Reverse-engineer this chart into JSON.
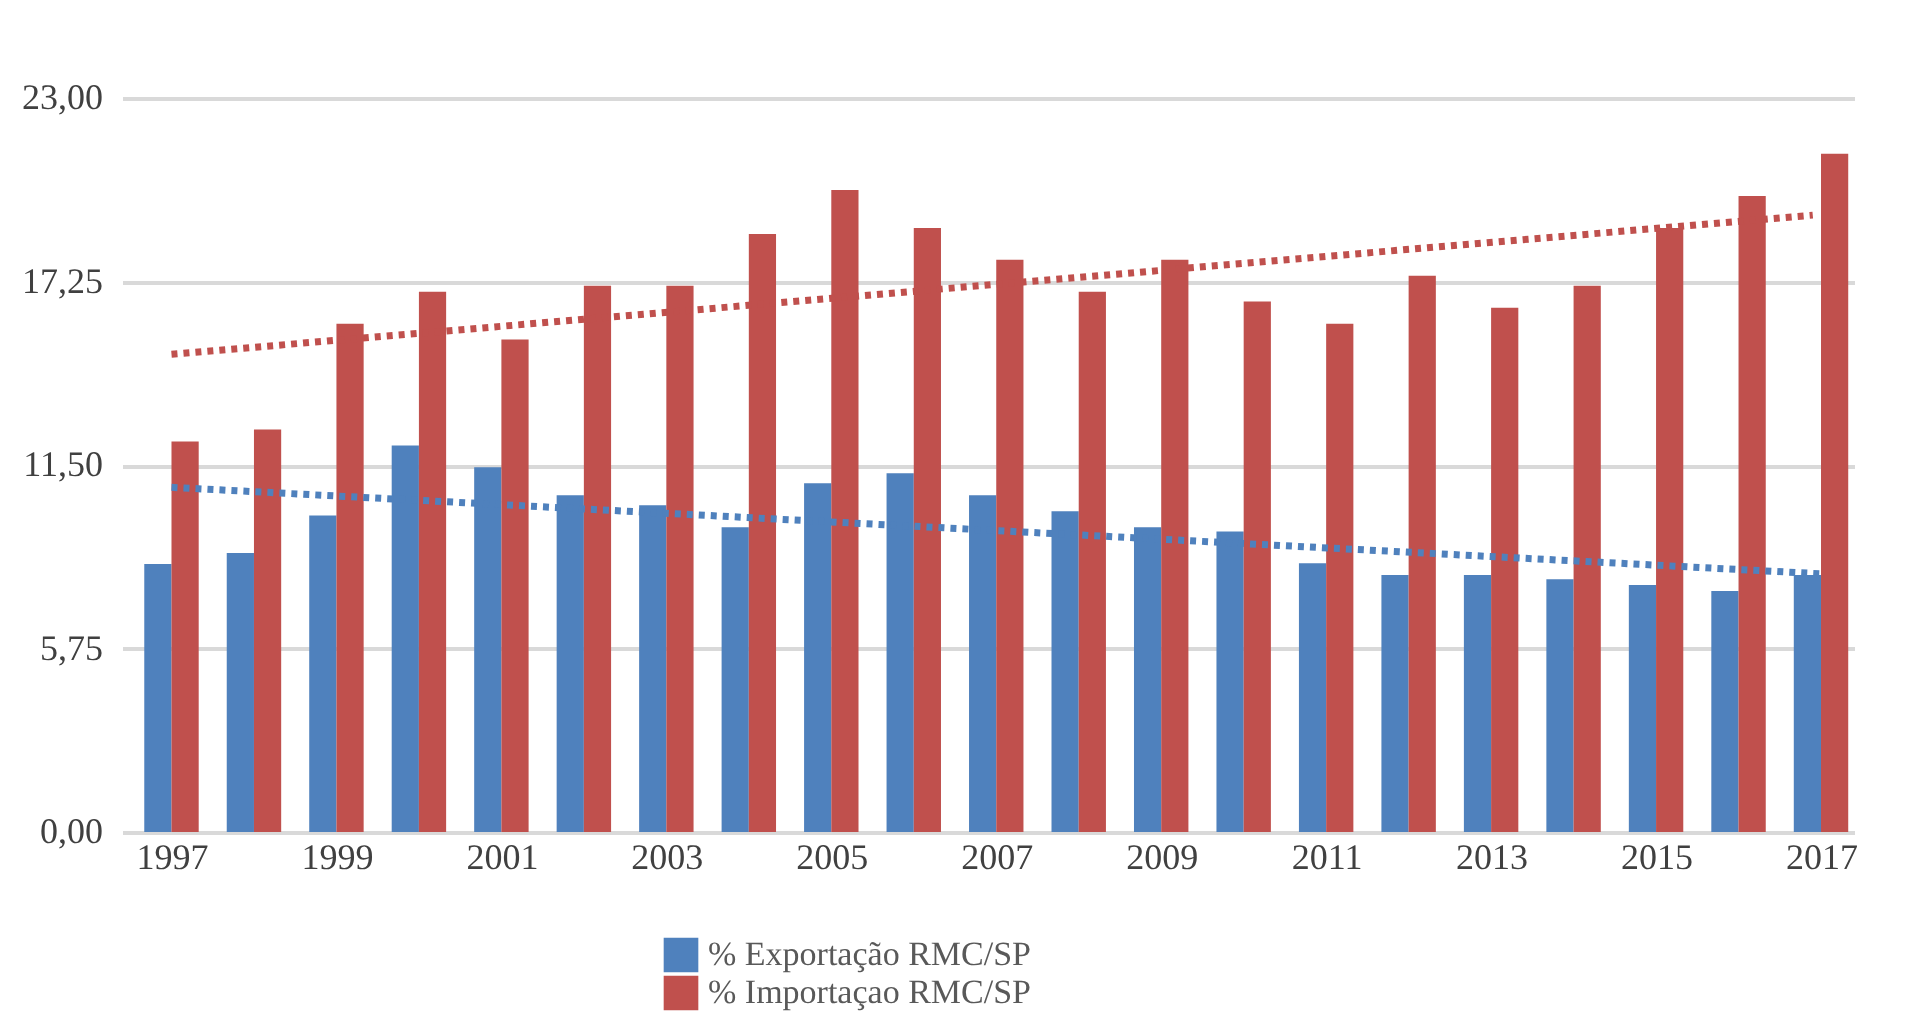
{
  "chart_data": {
    "type": "bar",
    "x": [
      1997,
      1998,
      1999,
      2000,
      2001,
      2002,
      2003,
      2004,
      2005,
      2006,
      2007,
      2008,
      2009,
      2010,
      2011,
      2012,
      2013,
      2014,
      2015,
      2016,
      2017
    ],
    "xlim": [
      1996.4,
      2017.4
    ],
    "xticks": [
      1997,
      1999,
      2001,
      2003,
      2005,
      2007,
      2009,
      2011,
      2013,
      2015,
      2017
    ],
    "series": [
      {
        "name": "% Exportação RMC/SP",
        "color": "#4f81bd",
        "values": [
          8.4,
          8.74,
          9.92,
          12.11,
          11.43,
          10.55,
          10.24,
          9.55,
          10.93,
          11.24,
          10.55,
          10.05,
          9.55,
          9.42,
          8.42,
          8.05,
          8.05,
          7.92,
          7.74,
          7.55,
          8.05
        ]
      },
      {
        "name": "% Importaçao RMC/SP",
        "color": "#c0504d",
        "values": [
          12.24,
          12.61,
          15.93,
          16.93,
          15.43,
          17.12,
          17.12,
          18.74,
          20.12,
          18.93,
          17.93,
          16.93,
          17.93,
          16.62,
          15.93,
          17.43,
          16.43,
          17.12,
          18.93,
          19.93,
          21.25
        ]
      },
      {
        "type": "line",
        "color": "#4f81bd",
        "line_style": "dotted",
        "x": [
          1997,
          2017
        ],
        "values": [
          10.8,
          8.09
        ]
      },
      {
        "type": "line",
        "color": "#c0504d",
        "line_style": "dotted",
        "x": [
          1997,
          2016.9
        ],
        "values": [
          14.97,
          19.33
        ]
      }
    ],
    "ylim": [
      0,
      23
    ],
    "yticks": [
      {
        "value": 0,
        "label": "0,00"
      },
      {
        "value": 5.75,
        "label": "5,75"
      },
      {
        "value": 11.5,
        "label": "11,50"
      },
      {
        "value": 17.25,
        "label": "17,25"
      },
      {
        "value": 23,
        "label": "23,00"
      }
    ],
    "grid": "y",
    "legend": "bottom"
  }
}
